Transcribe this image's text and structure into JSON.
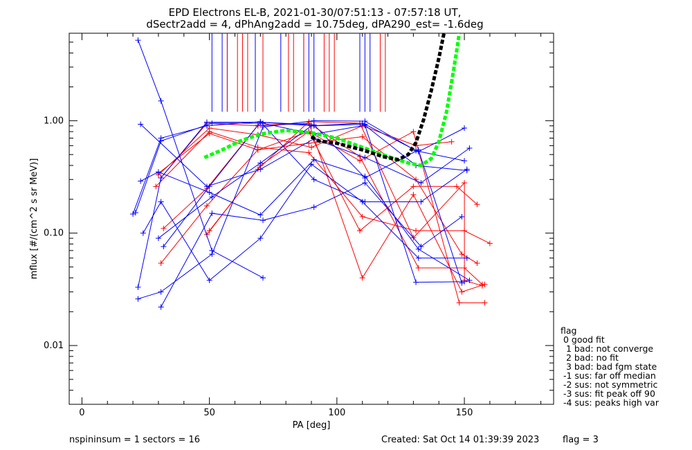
{
  "chart_data": {
    "type": "line",
    "title": "EPD Electrons EL-B, 2021-01-30/07:51:13 - 07:57:18 UT,",
    "subtitle": "dSectr2add = 4, dPhAng2add = 10.75deg, dPA290_est=  -1.6deg",
    "xlabel": "PA [deg]",
    "ylabel": "mflux [#/(cm^2 s sr MeV)]",
    "xlim": [
      -5,
      185
    ],
    "ylim": [
      0.003,
      6
    ],
    "yscale": "log",
    "x_ticks": [
      0,
      50,
      100,
      150
    ],
    "y_ticks": [
      0.01,
      0.1,
      1.0
    ],
    "y_tick_labels": [
      "0.01",
      "0.10",
      "1.00"
    ],
    "footer_left": "nspininsum =  1  sectors = 16",
    "footer_right": "Created: Sat Oct 14 01:39:39 2023",
    "footer_flag": "flag = 3",
    "legend": {
      "title": "flag",
      "entries": [
        " 0 good fit",
        "  1 bad: not converge",
        "  2 bad: no fit",
        "  3 bad: bad fgm state",
        " -1 sus: far off median",
        " -2 sus: not symmetric",
        " -3 sus: fit peak off 90",
        " -4 sus: peaks high var"
      ]
    },
    "colors": {
      "blue": "#0000ff",
      "red": "#ff0000",
      "black": "#000000",
      "green": "#00ff00"
    },
    "sector_lines": {
      "blue_x": [
        51,
        55,
        57,
        68,
        71,
        78,
        87,
        89,
        91,
        109,
        111,
        113
      ],
      "red_x": [
        57,
        61,
        63,
        65,
        71,
        81,
        83,
        87,
        95,
        97,
        99,
        117,
        119
      ],
      "y_range": [
        1.2,
        6
      ]
    },
    "series_blue": [
      [
        [
          20,
          0.148
        ],
        [
          31,
          0.7
        ],
        [
          49,
          0.9
        ],
        [
          70,
          0.98
        ],
        [
          91,
          0.3
        ],
        [
          111,
          0.19
        ],
        [
          133,
          0.19
        ],
        [
          151,
          0.37
        ]
      ],
      [
        [
          21,
          0.152
        ],
        [
          31,
          0.66
        ],
        [
          51,
          0.95
        ],
        [
          71,
          0.95
        ],
        [
          91,
          0.76
        ],
        [
          111,
          0.91
        ],
        [
          131,
          0.0365
        ],
        [
          150,
          0.037
        ]
      ],
      [
        [
          22,
          0.033
        ],
        [
          31,
          0.31
        ],
        [
          49,
          0.97
        ],
        [
          70,
          0.97
        ],
        [
          91,
          0.9
        ],
        [
          111,
          0.93
        ],
        [
          132,
          0.53
        ],
        [
          150,
          0.86
        ]
      ],
      [
        [
          22,
          0.026
        ],
        [
          31,
          0.03
        ],
        [
          51,
          0.065
        ],
        [
          71,
          0.88
        ],
        [
          91,
          1.0
        ],
        [
          111,
          0.99
        ],
        [
          131,
          0.54
        ],
        [
          150,
          0.44
        ]
      ],
      [
        [
          23,
          0.29
        ],
        [
          30,
          0.35
        ],
        [
          50,
          0.23
        ],
        [
          70,
          0.145
        ],
        [
          91,
          0.45
        ],
        [
          111,
          0.32
        ],
        [
          132,
          0.072
        ],
        [
          152,
          0.038
        ]
      ],
      [
        [
          24,
          0.1
        ],
        [
          31,
          0.19
        ],
        [
          50,
          0.038
        ],
        [
          70,
          0.09
        ],
        [
          90,
          0.41
        ],
        [
          110,
          0.19
        ],
        [
          132,
          0.06
        ],
        [
          151,
          0.06
        ]
      ],
      [
        [
          23,
          0.93
        ],
        [
          49,
          0.26
        ],
        [
          70,
          0.37
        ],
        [
          91,
          0.69
        ],
        [
          111,
          0.47
        ],
        [
          133,
          0.28
        ],
        [
          152,
          0.57
        ]
      ],
      [
        [
          31,
          0.022
        ],
        [
          51,
          0.15
        ],
        [
          71,
          0.13
        ],
        [
          91,
          0.17
        ],
        [
          111,
          0.28
        ],
        [
          133,
          0.076
        ],
        [
          149,
          0.14
        ]
      ],
      [
        [
          30,
          0.09
        ],
        [
          51,
          0.21
        ],
        [
          70,
          0.42
        ],
        [
          90,
          0.9
        ],
        [
          110,
          0.95
        ],
        [
          131,
          0.4
        ],
        [
          151,
          0.36
        ]
      ],
      [
        [
          32,
          0.076
        ],
        [
          50,
          0.26
        ],
        [
          70,
          0.97
        ],
        [
          91,
          0.92
        ],
        [
          111,
          0.31
        ],
        [
          132,
          0.55
        ],
        [
          149,
          0.036
        ]
      ],
      [
        [
          22,
          5.2
        ],
        [
          31,
          1.5
        ],
        [
          51,
          0.07
        ],
        [
          71,
          0.04
        ]
      ]
    ],
    "series_red": [
      [
        [
          29,
          0.26
        ],
        [
          50,
          0.8
        ],
        [
          69,
          0.58
        ],
        [
          89,
          0.52
        ],
        [
          110,
          0.14
        ],
        [
          131,
          0.105
        ],
        [
          150,
          0.105
        ],
        [
          160,
          0.081
        ]
      ],
      [
        [
          30,
          0.34
        ],
        [
          50,
          0.77
        ],
        [
          69,
          0.55
        ],
        [
          89,
          0.63
        ],
        [
          110,
          0.72
        ],
        [
          131,
          0.3
        ],
        [
          149,
          0.065
        ],
        [
          155,
          0.054
        ]
      ],
      [
        [
          31,
          0.31
        ],
        [
          49,
          0.95
        ],
        [
          69,
          0.9
        ],
        [
          89,
          0.95
        ],
        [
          109,
          0.48
        ],
        [
          132,
          0.049
        ],
        [
          150,
          0.049
        ],
        [
          157,
          0.035
        ]
      ],
      [
        [
          30,
          0.33
        ],
        [
          50,
          0.86
        ],
        [
          69,
          0.75
        ],
        [
          90,
          0.58
        ],
        [
          110,
          0.9
        ],
        [
          131,
          0.6
        ],
        [
          145,
          0.65
        ]
      ],
      [
        [
          31,
          0.054
        ],
        [
          49,
          0.175
        ],
        [
          69,
          0.55
        ],
        [
          89,
          0.8
        ],
        [
          109,
          0.105
        ],
        [
          130,
          0.26
        ],
        [
          147,
          0.26
        ],
        [
          155,
          0.18
        ]
      ],
      [
        [
          32,
          0.11
        ],
        [
          49,
          0.25
        ],
        [
          69,
          0.91
        ],
        [
          89,
          0.95
        ],
        [
          110,
          0.04
        ],
        [
          130,
          0.22
        ],
        [
          149,
          0.03
        ],
        [
          158,
          0.035
        ]
      ],
      [
        [
          49,
          0.097
        ],
        [
          70,
          0.4
        ],
        [
          89,
          0.8
        ],
        [
          109,
          0.44
        ],
        [
          130,
          0.8
        ],
        [
          148,
          0.024
        ],
        [
          158,
          0.024
        ]
      ],
      [
        [
          50,
          0.105
        ],
        [
          69,
          0.37
        ],
        [
          89,
          0.98
        ],
        [
          109,
          0.95
        ],
        [
          130,
          0.091
        ],
        [
          150,
          0.28
        ],
        [
          150,
          0.038
        ],
        [
          157,
          0.034
        ]
      ]
    ],
    "fit_black": [
      [
        90,
        0.72
      ],
      [
        93,
        0.66
      ],
      [
        100,
        0.63
      ],
      [
        110,
        0.55
      ],
      [
        118,
        0.48
      ],
      [
        124,
        0.45
      ],
      [
        128,
        0.5
      ],
      [
        131,
        0.64
      ],
      [
        134,
        1.02
      ],
      [
        137,
        1.85
      ],
      [
        140,
        3.6
      ],
      [
        142,
        6.0
      ]
    ],
    "fit_green": [
      [
        48,
        0.47
      ],
      [
        55,
        0.55
      ],
      [
        62,
        0.66
      ],
      [
        70,
        0.76
      ],
      [
        80,
        0.82
      ],
      [
        90,
        0.78
      ],
      [
        100,
        0.7
      ],
      [
        110,
        0.58
      ],
      [
        120,
        0.48
      ],
      [
        128,
        0.42
      ],
      [
        133,
        0.4
      ],
      [
        137,
        0.46
      ],
      [
        140,
        0.65
      ],
      [
        143,
        1.2
      ],
      [
        145,
        2.2
      ],
      [
        147,
        4.2
      ],
      [
        148,
        6.0
      ]
    ]
  }
}
